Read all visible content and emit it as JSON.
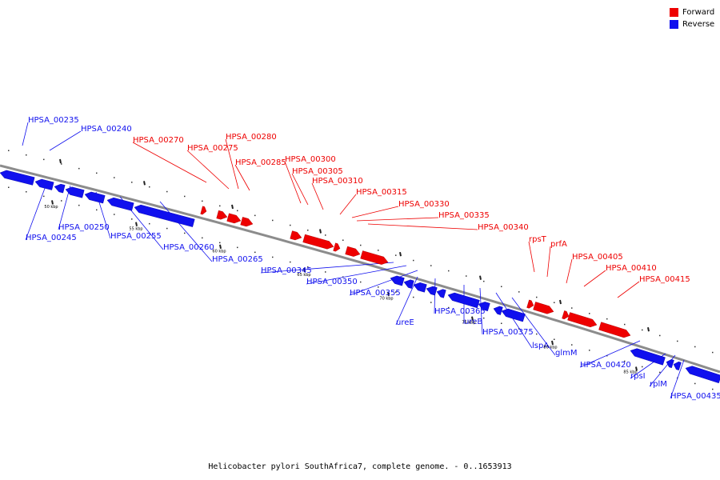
{
  "legend": {
    "items": [
      {
        "label": "Forward",
        "color": "#ee0000"
      },
      {
        "label": "Reverse",
        "color": "#1010ee"
      }
    ]
  },
  "caption": "Helicobacter pylori SouthAfrica7, complete genome. - 0..1653913",
  "colors": {
    "forward": "#ee0000",
    "reverse": "#1010ee",
    "backbone": "#8c8c8c"
  },
  "kbp_marks": [
    "50 kbp",
    "55 kbp",
    "60 kbp",
    "65 kbp",
    "70 kbp",
    "75 kbp",
    "80 kbp",
    "85 kbp"
  ],
  "forward_genes": [
    "HPSA_00270",
    "HPSA_00275",
    "HPSA_00280",
    "HPSA_00285",
    "HPSA_00300",
    "HPSA_00305",
    "HPSA_00310",
    "HPSA_00315",
    "HPSA_00330",
    "HPSA_00335",
    "HPSA_00340",
    "rpsT",
    "prfA",
    "HPSA_00405",
    "HPSA_00410",
    "HPSA_00415"
  ],
  "reverse_genes": [
    "HPSA_00235",
    "HPSA_00240",
    "HPSA_00245",
    "HPSA_00250",
    "HPSA_00255",
    "HPSA_00260",
    "HPSA_00265",
    "HPSA_00345",
    "HPSA_00350",
    "HPSA_00355",
    "ureE",
    "HPSA_00365",
    "ureB",
    "HPSA_00375",
    "lspA",
    "glmM",
    "HPSA_00420",
    "rpsI",
    "rplM",
    "HPSA_00435"
  ]
}
